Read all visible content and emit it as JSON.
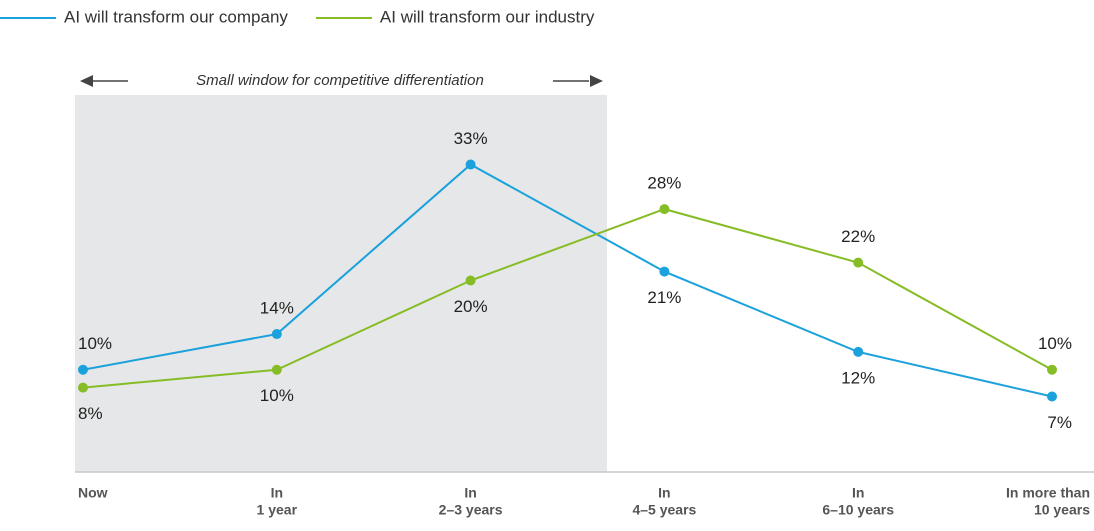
{
  "chart_data": {
    "type": "line",
    "annotation": "Small window for competitive differentiation",
    "categories": [
      [
        "Now"
      ],
      [
        "In",
        "1 year"
      ],
      [
        "In",
        "2–3 years"
      ],
      [
        "In",
        "4–5 years"
      ],
      [
        "In",
        "6–10 years"
      ],
      [
        "In more than",
        "10 years"
      ]
    ],
    "series": [
      {
        "name": "AI will transform our company",
        "color": "#1ba1db",
        "values": [
          10,
          14,
          33,
          21,
          12,
          7
        ],
        "value_labels": [
          "10%",
          "14%",
          "33%",
          "21%",
          "12%",
          "7%"
        ]
      },
      {
        "name": "AI will transform our industry",
        "color": "#86bc25",
        "values": [
          8,
          10,
          20,
          28,
          22,
          10
        ],
        "value_labels": [
          "8%",
          "10%",
          "20%",
          "28%",
          "22%",
          "10%"
        ]
      }
    ],
    "ylim": [
      0,
      40
    ]
  }
}
